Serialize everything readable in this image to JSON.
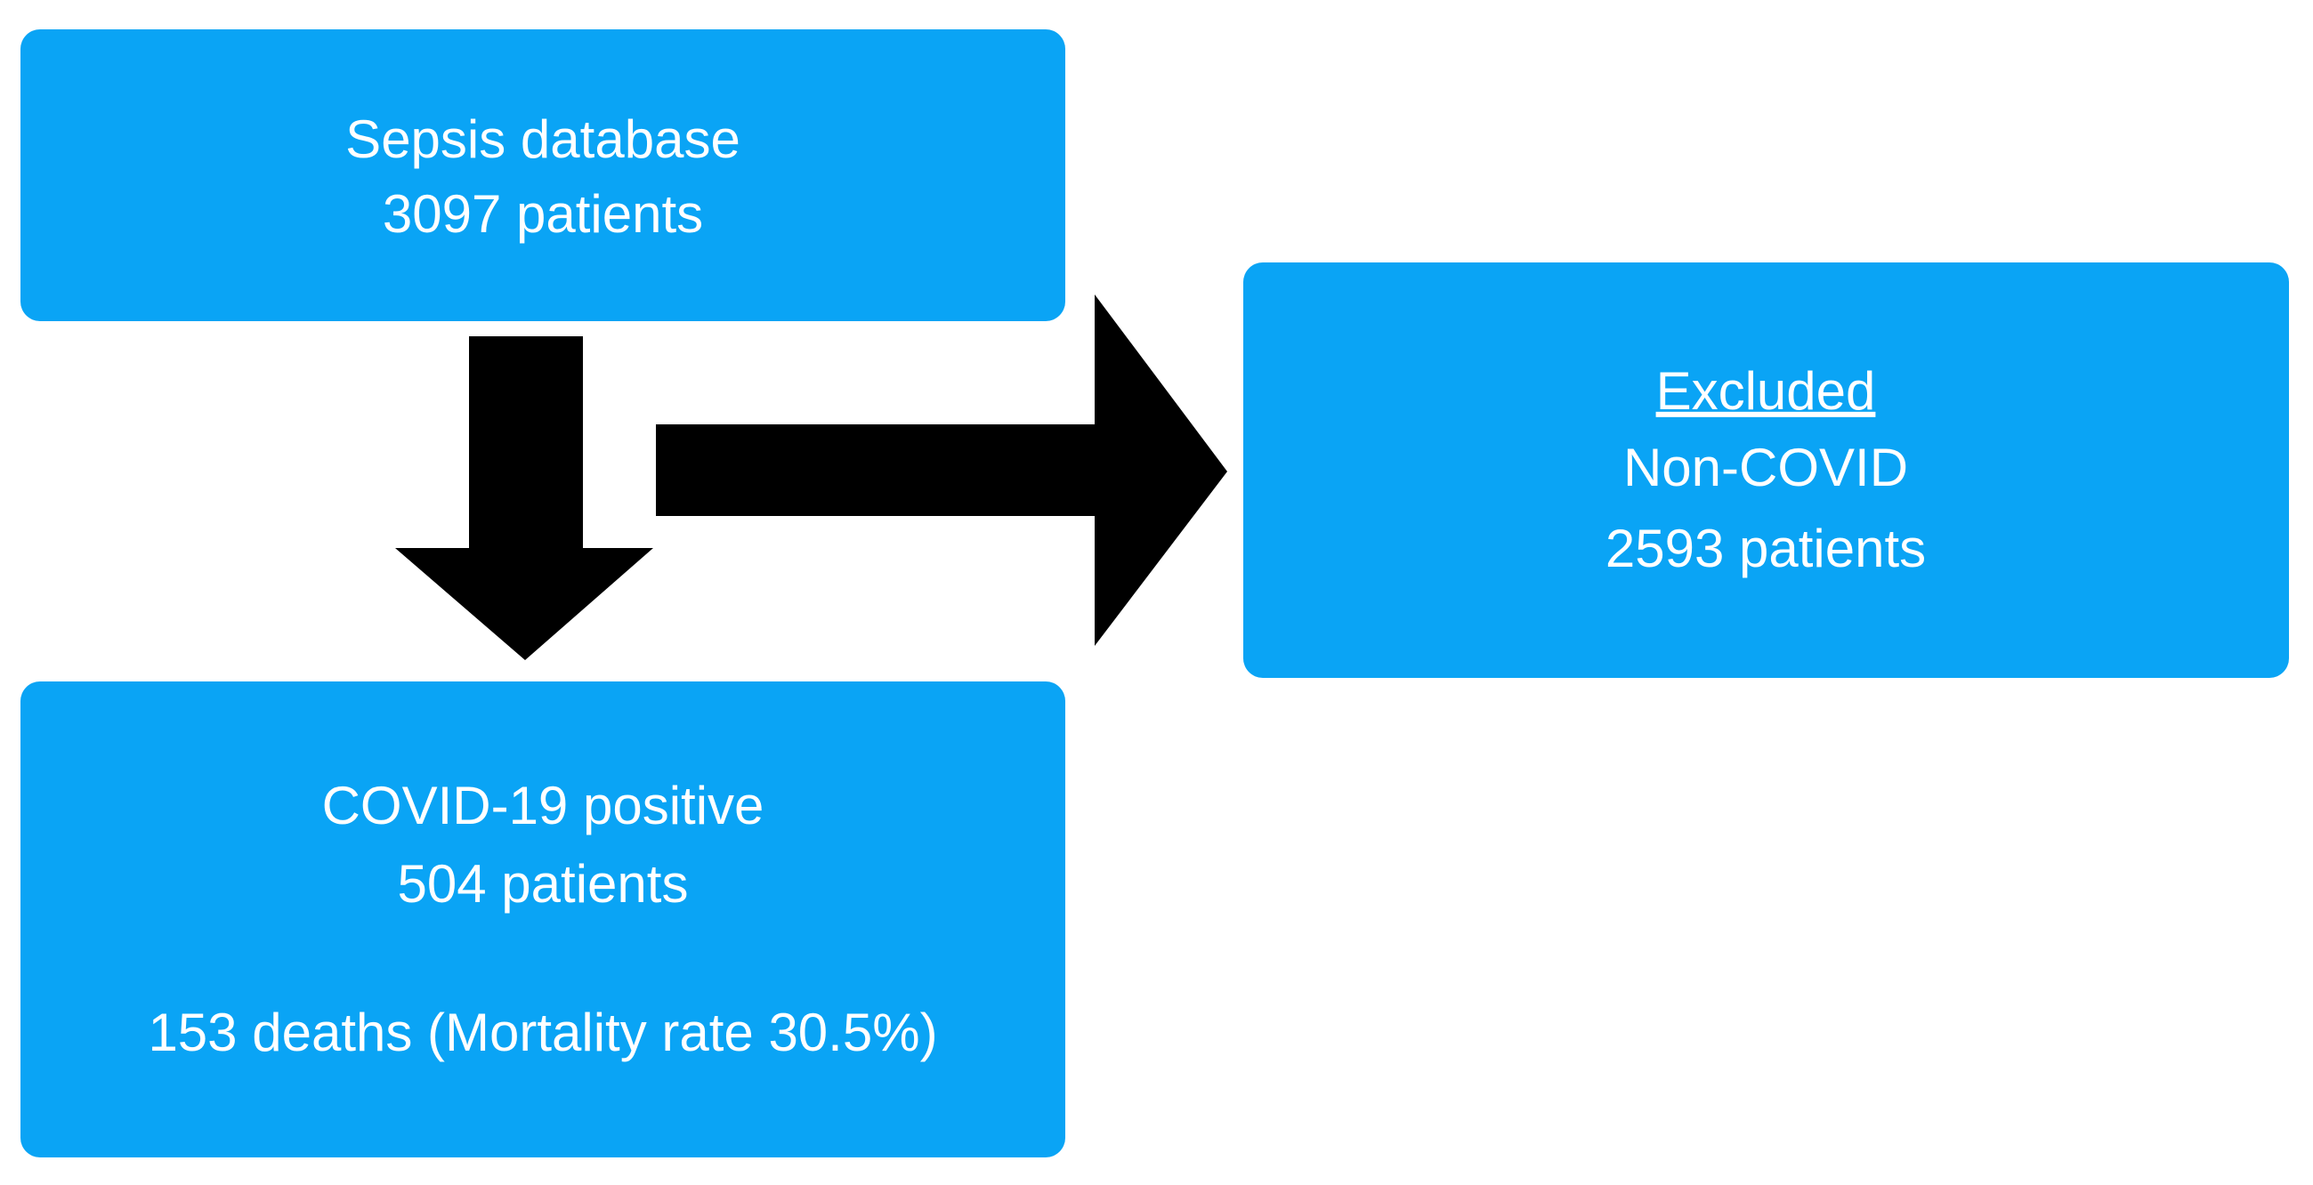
{
  "nodes": [
    {
      "lines": [
        "Sepsis database",
        "3097 patients"
      ]
    },
    {
      "heading": "Excluded",
      "lines": [
        "Non-COVID",
        "2593 patients"
      ]
    },
    {
      "lines": [
        "COVID-19 positive",
        "504 patients",
        "153 deaths (Mortality rate 30.5%)"
      ]
    }
  ]
}
